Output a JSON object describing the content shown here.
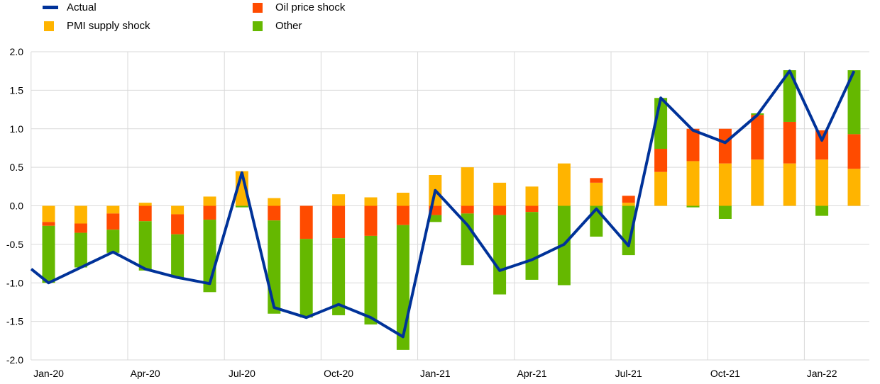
{
  "legend": {
    "actual": "Actual",
    "pmi": "PMI supply shock",
    "oil": "Oil price shock",
    "other": "Other"
  },
  "colors": {
    "actual": "#003299",
    "pmi": "#FFB400",
    "oil": "#FF4B00",
    "other": "#65B800",
    "grid": "#d9d9d9"
  },
  "chart_data": {
    "type": "bar",
    "stacked": true,
    "grid": true,
    "legend_position": "top-left",
    "ylim": [
      -2.0,
      2.0
    ],
    "yticks": [
      "2.0",
      "1.5",
      "1.0",
      "0.5",
      "0.0",
      "-0.5",
      "-1.0",
      "-1.5",
      "-2.0"
    ],
    "ytick_values": [
      2.0,
      1.5,
      1.0,
      0.5,
      0.0,
      -0.5,
      -1.0,
      -1.5,
      -2.0
    ],
    "xticks": [
      {
        "label": "Jan-20",
        "index": 0
      },
      {
        "label": "Apr-20",
        "index": 3
      },
      {
        "label": "Jul-20",
        "index": 6
      },
      {
        "label": "Oct-20",
        "index": 9
      },
      {
        "label": "Jan-21",
        "index": 12
      },
      {
        "label": "Apr-21",
        "index": 15
      },
      {
        "label": "Jul-21",
        "index": 18
      },
      {
        "label": "Oct-21",
        "index": 21
      },
      {
        "label": "Jan-22",
        "index": 24
      }
    ],
    "categories": [
      "Jan-20",
      "Feb-20",
      "Mar-20",
      "Apr-20",
      "May-20",
      "Jun-20",
      "Jul-20",
      "Aug-20",
      "Sep-20",
      "Oct-20",
      "Nov-20",
      "Dec-20",
      "Jan-21",
      "Feb-21",
      "Mar-21",
      "Apr-21",
      "May-21",
      "Jun-21",
      "Jul-21",
      "Aug-21",
      "Sep-21",
      "Oct-21",
      "Nov-21",
      "Dec-21",
      "Jan-22",
      "Feb-22"
    ],
    "series": [
      {
        "name": "PMI supply shock",
        "key": "pmi",
        "values": [
          -0.21,
          -0.23,
          -0.1,
          0.04,
          -0.11,
          0.12,
          0.45,
          0.1,
          0.0,
          0.15,
          0.11,
          0.17,
          0.4,
          0.5,
          0.3,
          0.25,
          0.55,
          0.3,
          0.04,
          0.44,
          0.58,
          0.55,
          0.6,
          0.55,
          0.6,
          0.48
        ]
      },
      {
        "name": "Oil price shock",
        "key": "oil",
        "values": [
          -0.05,
          -0.12,
          -0.21,
          -0.2,
          -0.26,
          -0.18,
          0.0,
          -0.19,
          -0.43,
          -0.42,
          -0.39,
          -0.25,
          -0.12,
          -0.1,
          -0.12,
          -0.08,
          0.0,
          0.06,
          0.09,
          0.3,
          0.42,
          0.45,
          0.58,
          0.54,
          0.38,
          0.45
        ]
      },
      {
        "name": "Other",
        "key": "other",
        "values": [
          -0.74,
          -0.45,
          -0.3,
          -0.64,
          -0.56,
          -0.94,
          -0.02,
          -1.21,
          -1.02,
          -1.0,
          -1.15,
          -1.62,
          -0.09,
          -0.67,
          -1.03,
          -0.88,
          -1.03,
          -0.4,
          -0.64,
          0.66,
          -0.02,
          -0.17,
          0.02,
          0.67,
          -0.13,
          0.83
        ]
      }
    ],
    "line": {
      "name": "Actual",
      "key": "actual",
      "x_start": -1,
      "values": [
        -0.82,
        -1.0,
        -0.8,
        -0.6,
        -0.82,
        -0.93,
        -1.01,
        0.43,
        -1.32,
        -1.45,
        -1.28,
        -1.45,
        -1.7,
        0.2,
        -0.25,
        -0.84,
        -0.7,
        -0.5,
        -0.04,
        -0.52,
        1.4,
        0.98,
        0.82,
        1.18,
        1.75,
        0.85,
        1.75
      ]
    }
  }
}
